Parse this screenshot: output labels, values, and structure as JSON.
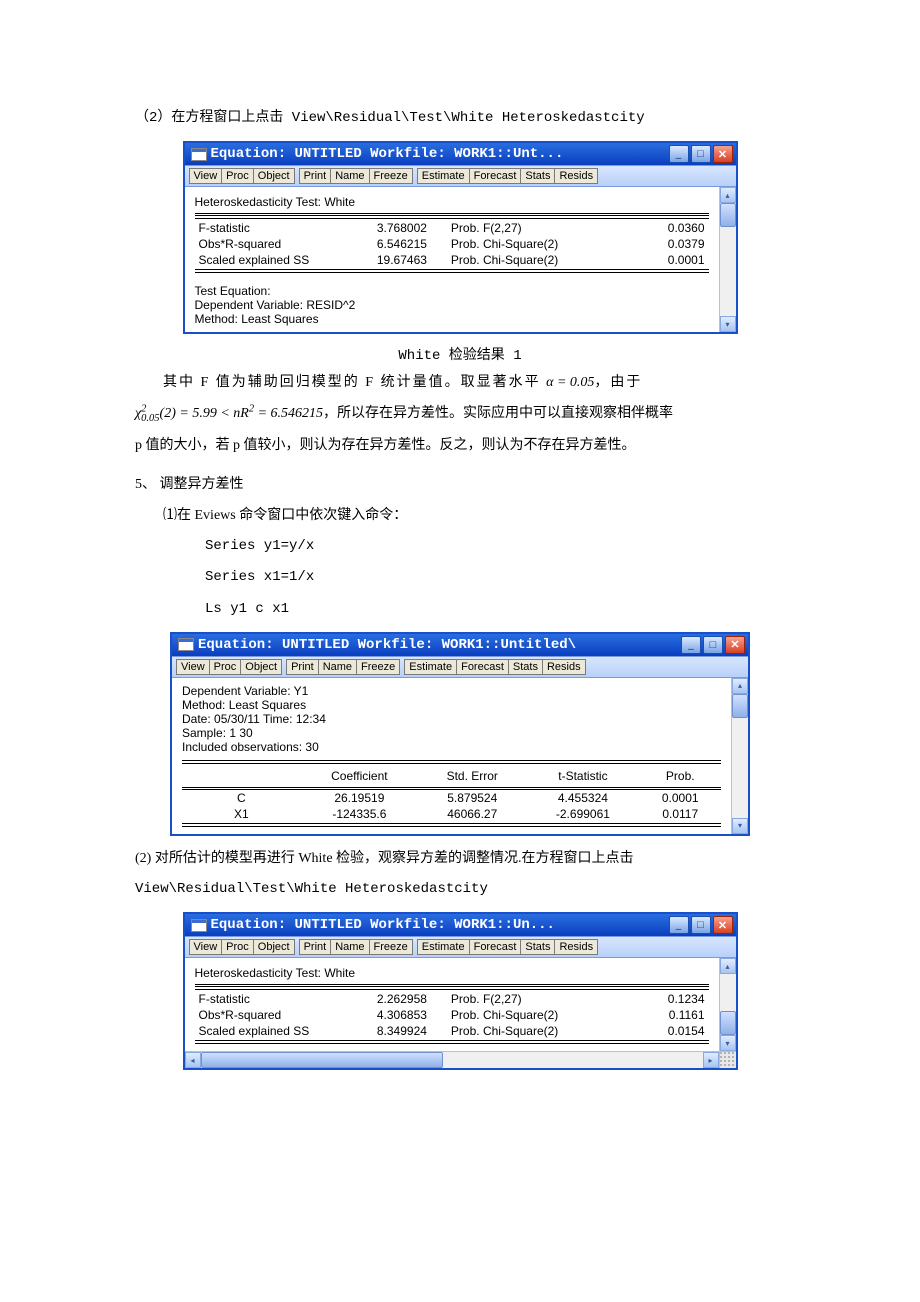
{
  "text": {
    "line1": "（2）在方程窗口上点击 View\\Residual\\Test\\White Heteroskedastcity",
    "caption1": "White 检验结果 1",
    "para1a": "其中 F 值为辅助回归模型的 F 统计量值。取显著水平 ",
    "para1b": "，由于",
    "para1c": "，所以存在异方差性。实际应用中可以直接观察相伴概率",
    "para1d": "p 值的大小，若 p 值较小，则认为存在异方差性。反之，则认为不存在异方差性。",
    "sec5": "5、 调整异方差性",
    "sec5_1": "⑴在 Eviews 命令窗口中依次键入命令：",
    "cmd1": "Series y1=y/x",
    "cmd2": "Series x1=1/x",
    "cmd3": "Ls y1 c x1",
    "sec5_2a": "(2) 对所估计的模型再进行 White 检验，观察异方差的调整情况.在方程窗口上点击",
    "sec5_2b": "View\\Residual\\Test\\White Heteroskedastcity",
    "alpha_eq": "α = 0.05",
    "chi_eq": "χ²₀.₀₅(2) = 5.99 < nR² = 6.546215"
  },
  "window_style": {
    "titlebar_gradient_from": "#2a6de0",
    "titlebar_gradient_to": "#0a3fbf",
    "toolbar_gradient_from": "#d8e6ff",
    "toolbar_gradient_to": "#b8d0f8",
    "close_btn_color": "#d84020",
    "content_bg": "#ffffff",
    "frame_bg": "#ece9d8",
    "border_color": "#1a4fcc",
    "font_body": "Arial",
    "font_title": "Courier New"
  },
  "toolbar_groups": [
    [
      "View",
      "Proc",
      "Object"
    ],
    [
      "Print",
      "Name",
      "Freeze"
    ],
    [
      "Estimate",
      "Forecast",
      "Stats",
      "Resids"
    ]
  ],
  "win1": {
    "title": "Equation: UNTITLED   Workfile: WORK1::Unt...",
    "test_title": "Heteroskedasticity Test: White",
    "rows": [
      {
        "l": "F-statistic",
        "v": "3.768002",
        "r": "Prob. F(2,27)",
        "p": "0.0360"
      },
      {
        "l": "Obs*R-squared",
        "v": "6.546215",
        "r": "Prob. Chi-Square(2)",
        "p": "0.0379"
      },
      {
        "l": "Scaled explained SS",
        "v": "19.67463",
        "r": "Prob. Chi-Square(2)",
        "p": "0.0001"
      }
    ],
    "footer": [
      "Test Equation:",
      "Dependent Variable: RESID^2",
      "Method: Least Squares"
    ]
  },
  "win2": {
    "title": "Equation: UNTITLED   Workfile: WORK1::Untitled\\",
    "header": [
      "Dependent Variable: Y1",
      "Method: Least Squares",
      "Date: 05/30/11   Time: 12:34",
      "Sample: 1 30",
      "Included observations: 30"
    ],
    "cols": [
      "",
      "Coefficient",
      "Std. Error",
      "t-Statistic",
      "Prob."
    ],
    "rows": [
      {
        "n": "C",
        "c": "26.19519",
        "s": "5.879524",
        "t": "4.455324",
        "p": "0.0001"
      },
      {
        "n": "X1",
        "c": "-124335.6",
        "s": "46066.27",
        "t": "-2.699061",
        "p": "0.0117"
      }
    ]
  },
  "win3": {
    "title": "Equation: UNTITLED   Workfile: WORK1::Un...",
    "test_title": "Heteroskedasticity Test: White",
    "rows": [
      {
        "l": "F-statistic",
        "v": "2.262958",
        "r": "Prob. F(2,27)",
        "p": "0.1234"
      },
      {
        "l": "Obs*R-squared",
        "v": "4.306853",
        "r": "Prob. Chi-Square(2)",
        "p": "0.1161"
      },
      {
        "l": "Scaled explained SS",
        "v": "8.349924",
        "r": "Prob. Chi-Square(2)",
        "p": "0.0154"
      }
    ]
  }
}
